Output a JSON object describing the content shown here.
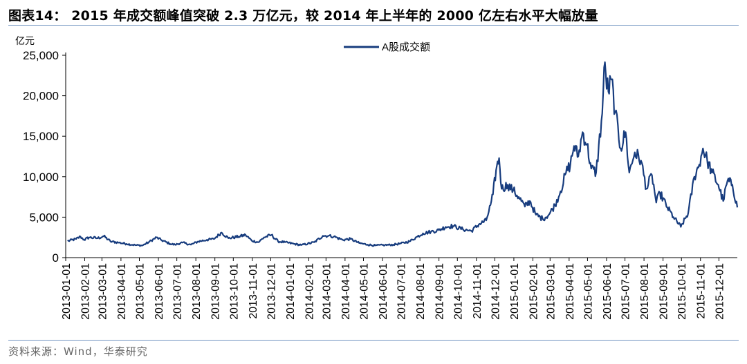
{
  "header": {
    "title": "图表14： 2015 年成交额峰值突破 2.3 万亿元，较 2014 年上半年的 2000 亿左右水平大幅放量"
  },
  "footer": {
    "source": "资料来源：Wind，华泰研究"
  },
  "colors": {
    "series": "#173c7e",
    "rule": "#6f93bf"
  },
  "chart_data": {
    "type": "line",
    "ylabel": "亿元",
    "ylim": [
      0,
      25000
    ],
    "yticks": [
      0,
      5000,
      10000,
      15000,
      20000,
      25000
    ],
    "ytick_labels": [
      "0",
      "5,000",
      "10,000",
      "15,000",
      "20,000",
      "25,000"
    ],
    "xticks": [
      "2013-01-01",
      "2013-02-01",
      "2013-03-01",
      "2013-04-01",
      "2013-05-01",
      "2013-06-01",
      "2013-07-01",
      "2013-08-01",
      "2013-09-01",
      "2013-10-01",
      "2013-11-01",
      "2013-12-01",
      "2014-01-01",
      "2014-02-01",
      "2014-03-01",
      "2014-04-01",
      "2014-05-01",
      "2014-06-01",
      "2014-07-01",
      "2014-08-01",
      "2014-09-01",
      "2014-10-01",
      "2014-11-01",
      "2014-12-01",
      "2015-01-01",
      "2015-02-01",
      "2015-03-01",
      "2015-04-01",
      "2015-05-01",
      "2015-06-01",
      "2015-07-01",
      "2015-08-01",
      "2015-09-01",
      "2015-10-01",
      "2015-11-01",
      "2015-12-01"
    ],
    "xlim": [
      "2013-01-01",
      "2015-12-31"
    ],
    "legend": {
      "position": "top-center"
    },
    "grid": false,
    "series": [
      {
        "name": "A股成交额",
        "points": [
          [
            "2013-01-04",
            2050
          ],
          [
            "2013-01-18",
            2300
          ],
          [
            "2013-01-25",
            2600
          ],
          [
            "2013-01-31",
            2200
          ],
          [
            "2013-02-08",
            2500
          ],
          [
            "2013-02-22",
            2400
          ],
          [
            "2013-03-04",
            2650
          ],
          [
            "2013-03-15",
            2000
          ],
          [
            "2013-03-29",
            1850
          ],
          [
            "2013-04-10",
            1700
          ],
          [
            "2013-04-24",
            1550
          ],
          [
            "2013-05-06",
            1500
          ],
          [
            "2013-05-16",
            1900
          ],
          [
            "2013-05-29",
            2500
          ],
          [
            "2013-06-05",
            2200
          ],
          [
            "2013-06-20",
            1700
          ],
          [
            "2013-06-28",
            1600
          ],
          [
            "2013-07-10",
            1850
          ],
          [
            "2013-07-24",
            1600
          ],
          [
            "2013-08-05",
            2000
          ],
          [
            "2013-08-19",
            2200
          ],
          [
            "2013-08-30",
            2300
          ],
          [
            "2013-09-12",
            3100
          ],
          [
            "2013-09-23",
            2400
          ],
          [
            "2013-10-10",
            2600
          ],
          [
            "2013-10-21",
            2800
          ],
          [
            "2013-10-31",
            2100
          ],
          [
            "2013-11-11",
            1900
          ],
          [
            "2013-11-20",
            2500
          ],
          [
            "2013-12-02",
            2800
          ],
          [
            "2013-12-13",
            2000
          ],
          [
            "2013-12-24",
            1900
          ],
          [
            "2014-01-08",
            1700
          ],
          [
            "2014-01-20",
            1550
          ],
          [
            "2014-02-10",
            1900
          ],
          [
            "2014-02-24",
            2700
          ],
          [
            "2014-03-05",
            2700
          ],
          [
            "2014-03-14",
            2600
          ],
          [
            "2014-03-28",
            2200
          ],
          [
            "2014-04-10",
            2300
          ],
          [
            "2014-04-24",
            1800
          ],
          [
            "2014-05-08",
            1600
          ],
          [
            "2014-05-20",
            1500
          ],
          [
            "2014-06-05",
            1550
          ],
          [
            "2014-06-19",
            1600
          ],
          [
            "2014-07-01",
            1750
          ],
          [
            "2014-07-15",
            2000
          ],
          [
            "2014-07-28",
            2600
          ],
          [
            "2014-08-06",
            3000
          ],
          [
            "2014-08-19",
            3200
          ],
          [
            "2014-09-01",
            3400
          ],
          [
            "2014-09-12",
            3800
          ],
          [
            "2014-09-24",
            3900
          ],
          [
            "2014-10-10",
            3500
          ],
          [
            "2014-10-24",
            3300
          ],
          [
            "2014-11-05",
            4100
          ],
          [
            "2014-11-17",
            4600
          ],
          [
            "2014-11-24",
            6500
          ],
          [
            "2014-11-28",
            7800
          ],
          [
            "2014-12-03",
            10800
          ],
          [
            "2014-12-08",
            12300
          ],
          [
            "2014-12-12",
            8500
          ],
          [
            "2014-12-22",
            9000
          ],
          [
            "2014-12-31",
            8300
          ],
          [
            "2015-01-09",
            7500
          ],
          [
            "2015-01-19",
            6300
          ],
          [
            "2015-01-27",
            7000
          ],
          [
            "2015-02-06",
            5300
          ],
          [
            "2015-02-17",
            4800
          ],
          [
            "2015-02-27",
            5300
          ],
          [
            "2015-03-09",
            6500
          ],
          [
            "2015-03-18",
            8200
          ],
          [
            "2015-03-27",
            10500
          ],
          [
            "2015-04-03",
            11500
          ],
          [
            "2015-04-09",
            13800
          ],
          [
            "2015-04-16",
            12500
          ],
          [
            "2015-04-23",
            15500
          ],
          [
            "2015-04-30",
            14000
          ],
          [
            "2015-05-07",
            11000
          ],
          [
            "2015-05-15",
            10500
          ],
          [
            "2015-05-25",
            17800
          ],
          [
            "2015-05-28",
            23500
          ],
          [
            "2015-06-04",
            20500
          ],
          [
            "2015-06-09",
            22000
          ],
          [
            "2015-06-15",
            18000
          ],
          [
            "2015-06-24",
            13500
          ],
          [
            "2015-07-02",
            15500
          ],
          [
            "2015-07-08",
            10500
          ],
          [
            "2015-07-17",
            13000
          ],
          [
            "2015-07-27",
            12000
          ],
          [
            "2015-08-05",
            8500
          ],
          [
            "2015-08-14",
            10200
          ],
          [
            "2015-08-21",
            6800
          ],
          [
            "2015-08-27",
            8000
          ],
          [
            "2015-09-08",
            6200
          ],
          [
            "2015-09-18",
            5000
          ],
          [
            "2015-09-30",
            3800
          ],
          [
            "2015-10-12",
            5500
          ],
          [
            "2015-10-22",
            10000
          ],
          [
            "2015-10-30",
            11500
          ],
          [
            "2015-11-05",
            13500
          ],
          [
            "2015-11-12",
            12000
          ],
          [
            "2015-11-20",
            10500
          ],
          [
            "2015-11-30",
            9000
          ],
          [
            "2015-12-08",
            7000
          ],
          [
            "2015-12-15",
            9500
          ],
          [
            "2015-12-23",
            9000
          ],
          [
            "2015-12-31",
            6200
          ]
        ]
      }
    ]
  }
}
